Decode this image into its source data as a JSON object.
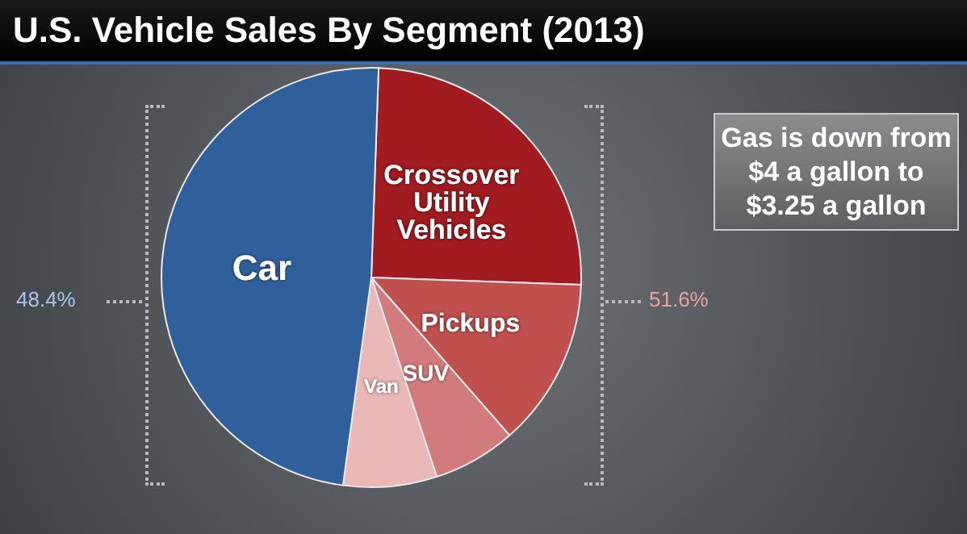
{
  "chart_data": {
    "type": "pie",
    "title": "U.S. Vehicle Sales By Segment (2013)",
    "categories": [
      "Crossover Utility Vehicles",
      "Pickups",
      "SUV",
      "Van",
      "Car"
    ],
    "values": [
      25,
      13,
      6.4,
      7.2,
      48.4
    ],
    "colors": [
      "#a11b20",
      "#c0504d",
      "#d27b7c",
      "#e9b8b7",
      "#30609b"
    ],
    "annotations": [
      "48.4%",
      "51.6%",
      "Gas is down from $4 a gallon to $3.25 a gallon"
    ]
  }
}
